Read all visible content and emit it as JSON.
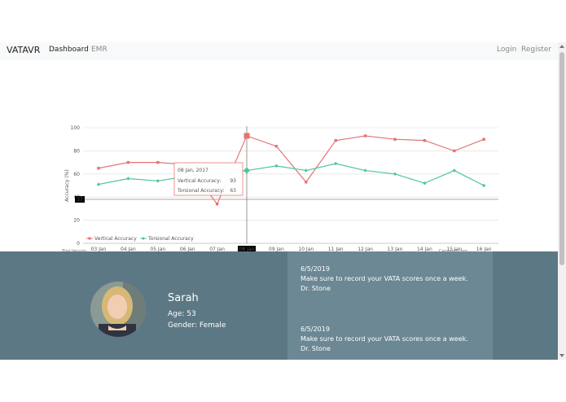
{
  "navbar": {
    "brand": "VATAVR",
    "links": [
      "Dashboard",
      "EMR"
    ],
    "right_links": [
      "Login",
      "Register"
    ]
  },
  "chart_data": {
    "type": "line",
    "categories": [
      "03 Jan",
      "04 Jan",
      "05 Jan",
      "06 Jan",
      "07 Jan",
      "08 Jan",
      "09 Jan",
      "10 Jan",
      "11 Jan",
      "12 Jan",
      "13 Jan",
      "14 Jan",
      "15 Jan",
      "16 Jan"
    ],
    "series": [
      {
        "name": "Vertical Accuracy",
        "values": [
          65,
          70,
          70,
          68,
          34,
          93,
          84,
          53,
          89,
          93,
          90,
          89,
          80,
          90
        ],
        "color": "#e57373"
      },
      {
        "name": "Torsional Accuracy",
        "values": [
          51,
          56,
          54,
          58,
          60,
          63,
          67,
          63,
          69,
          63,
          60,
          52,
          63,
          50
        ],
        "color": "#4dc69a"
      }
    ],
    "ylabel": "Accuracy (%)",
    "ylim": [
      0,
      100
    ],
    "yticks": [
      "0",
      "20",
      "40",
      "60",
      "80",
      "100"
    ],
    "legend": "bottom-left",
    "crosshair": {
      "x_label": "08 Jan",
      "y_label": "37"
    },
    "tooltip": {
      "title": "08 Jan, 2017",
      "rows": [
        {
          "label": "Vertical Accuracy:",
          "value": "93"
        },
        {
          "label": "Torsional Accuracy:",
          "value": "63"
        }
      ]
    },
    "watermark_left": "Trial Version",
    "watermark_right": "CanvasJS.com"
  },
  "profile": {
    "name": "Sarah",
    "age": "Age: 53",
    "gender": "Gender: Female"
  },
  "messages": [
    {
      "date": "6/5/2019",
      "text": "Make sure to record your VATA scores once a week.",
      "author": "Dr. Stone"
    },
    {
      "date": "6/5/2019",
      "text": "Make sure to record your VATA scores once a week.",
      "author": "Dr. Stone"
    }
  ]
}
